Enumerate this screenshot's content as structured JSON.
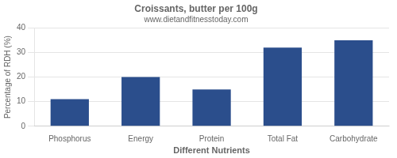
{
  "chart_data": {
    "type": "bar",
    "title": "Croissants, butter per 100g",
    "subtitle": "www.dietandfitnesstoday.com",
    "xlabel": "Different Nutrients",
    "ylabel": "Percentage of RDH (%)",
    "categories": [
      "Phosphorus",
      "Energy",
      "Protein",
      "Total Fat",
      "Carbohydrate"
    ],
    "values": [
      11,
      20,
      15,
      32,
      35
    ],
    "color": "#2b4e8c",
    "ylim": [
      0,
      40
    ],
    "yticks": [
      0,
      10,
      20,
      30,
      40
    ],
    "grid": true
  }
}
